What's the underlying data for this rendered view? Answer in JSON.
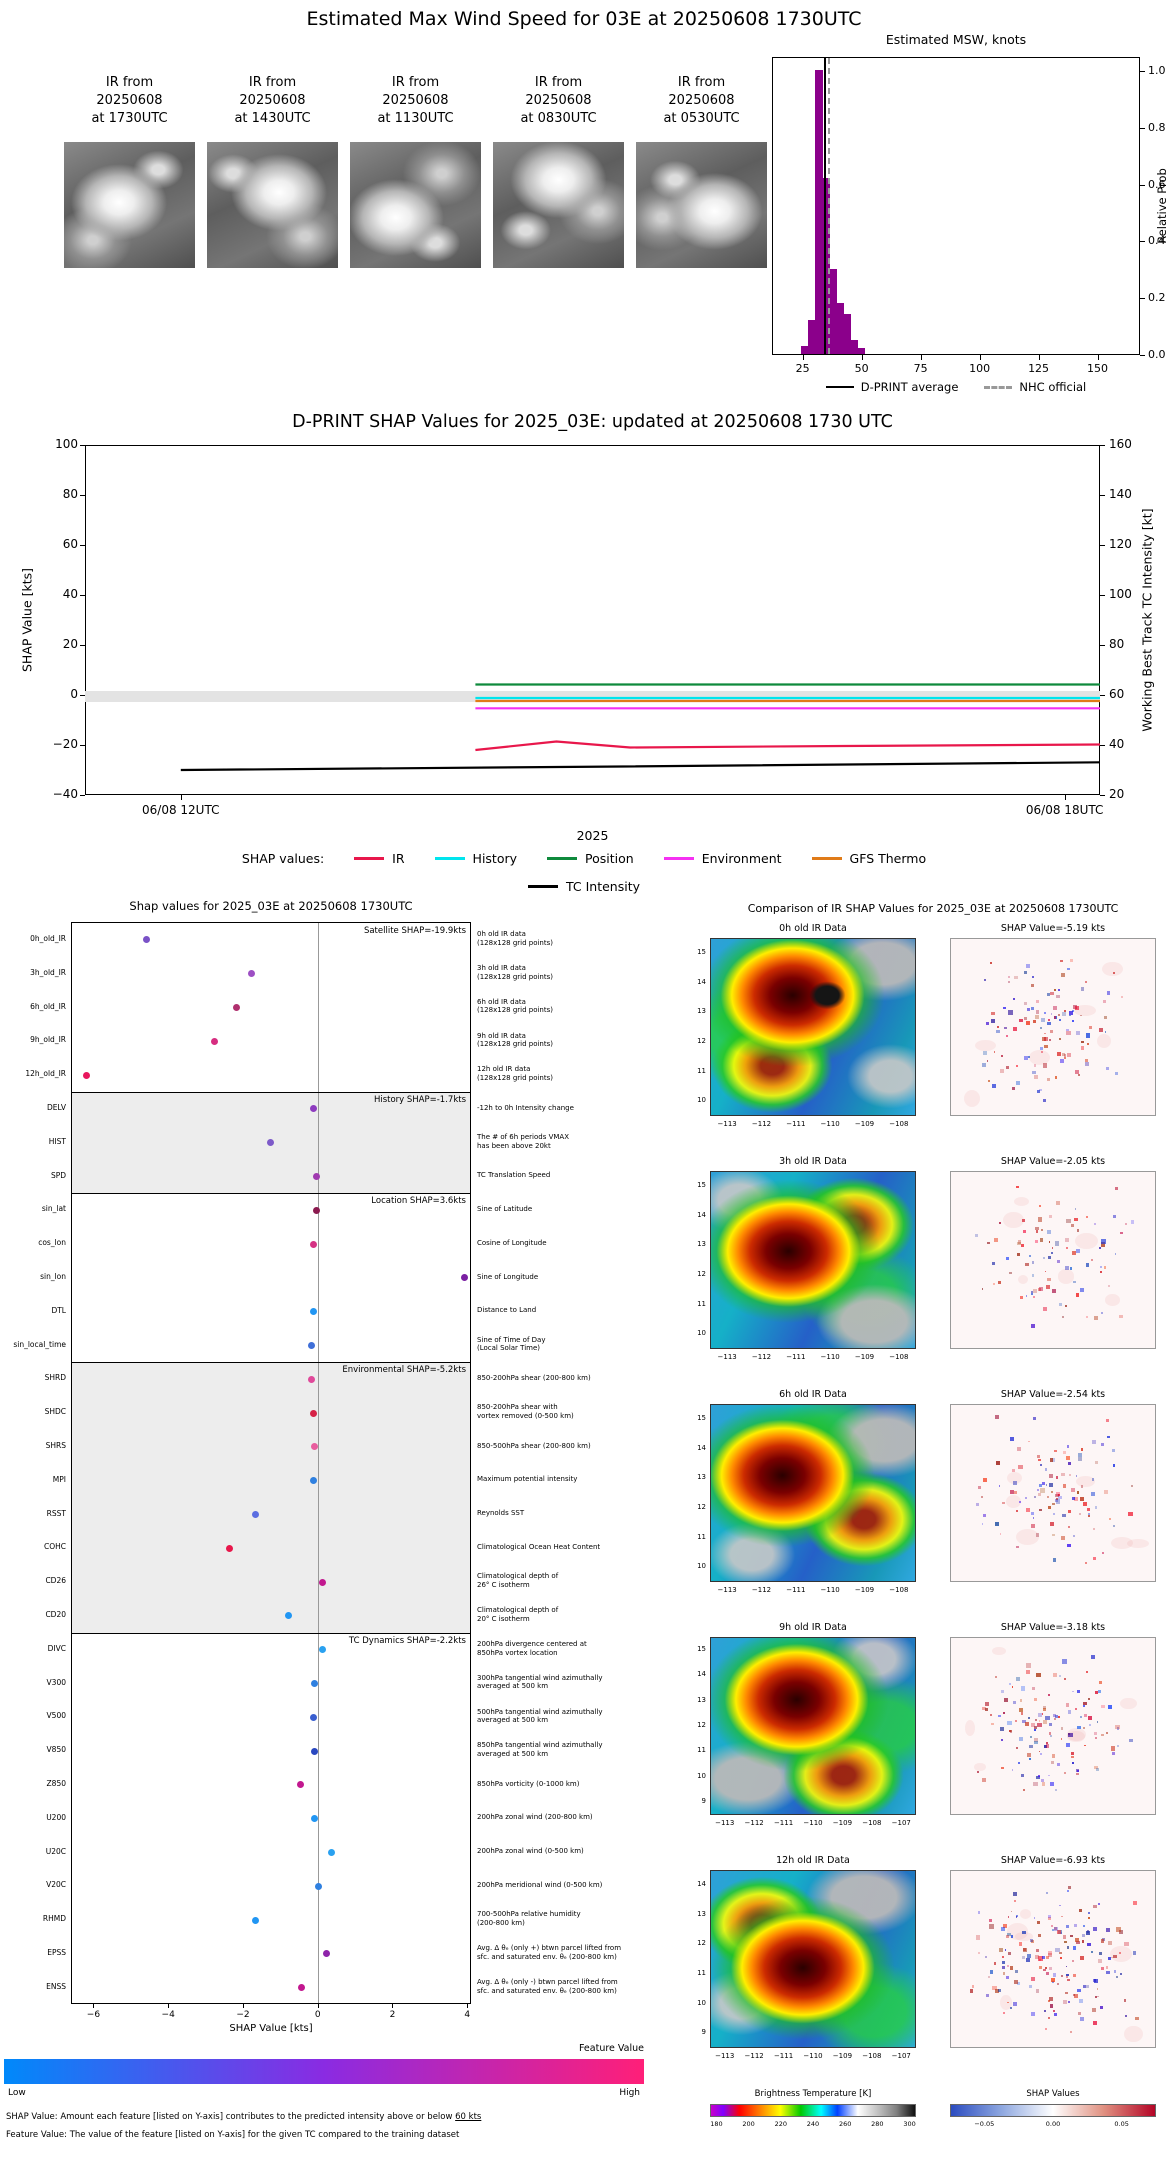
{
  "top": {
    "title": "Estimated Max Wind Speed for 03E at 20250608 1730UTC",
    "thumbnails": [
      {
        "label": "IR from\n20250608\nat 1730UTC"
      },
      {
        "label": "IR from\n20250608\nat 1430UTC"
      },
      {
        "label": "IR from\n20250608\nat 1130UTC"
      },
      {
        "label": "IR from\n20250608\nat 0830UTC"
      },
      {
        "label": "IR from\n20250608\nat 0530UTC"
      }
    ]
  },
  "chart_data": [
    {
      "id": "msw_histogram",
      "type": "bar",
      "title": "Estimated MSW, knots",
      "ylabel": "Relative Prob",
      "xlim": [
        12,
        168
      ],
      "ylim": [
        0,
        1.05
      ],
      "xticks": [
        25,
        50,
        75,
        100,
        125,
        150
      ],
      "yticks": [
        "0.0",
        "0.2",
        "0.4",
        "0.6",
        "0.8",
        "1.0"
      ],
      "bar_color": "#8B008B",
      "bin_start": 24,
      "bin_width": 3,
      "values": [
        0.03,
        0.12,
        1.0,
        0.62,
        0.3,
        0.18,
        0.14,
        0.05,
        0.02
      ],
      "dprint_average": 33.5,
      "nhc_official": 35.5,
      "legend": [
        {
          "label": "D-PRINT average",
          "color": "#000000",
          "style": "solid"
        },
        {
          "label": "NHC official",
          "color": "#999999",
          "style": "dashed"
        }
      ]
    },
    {
      "id": "shap_timeseries",
      "type": "line",
      "title": "D-PRINT SHAP Values for 2025_03E: updated at 20250608 1730 UTC",
      "ylabel_left": "SHAP Value [kts]",
      "ylabel_right": "Working Best Track TC Intensity [kt]",
      "xlabel": "2025",
      "ylim": [
        -40,
        100
      ],
      "ylim_right": [
        20,
        160
      ],
      "xlim": [
        11.35,
        18.24
      ],
      "yticks_left": [
        100,
        80,
        60,
        40,
        20,
        0,
        -20,
        -40
      ],
      "yticks_right": [
        160,
        140,
        120,
        100,
        80,
        60,
        40,
        20
      ],
      "xticks": [
        {
          "x": 12,
          "label": "06/08 12UTC"
        },
        {
          "x": 18,
          "label": "06/08 18UTC"
        }
      ],
      "zero_band": {
        "y0": -2.8,
        "y1": 1.6,
        "color": "#e3e3e3"
      },
      "legend_title": "SHAP values:",
      "series": [
        {
          "name": "IR",
          "color": "#e8174b",
          "points": [
            [
              14.0,
              -22.0
            ],
            [
              14.55,
              -18.6
            ],
            [
              15.05,
              -21.0
            ],
            [
              16.5,
              -20.4
            ],
            [
              18.24,
              -19.8
            ]
          ]
        },
        {
          "name": "History",
          "color": "#00e5ee",
          "points": [
            [
              14.0,
              -1.2
            ],
            [
              18.24,
              -1.2
            ]
          ]
        },
        {
          "name": "Position",
          "color": "#0f8a3c",
          "points": [
            [
              14.0,
              4.2
            ],
            [
              18.24,
              4.2
            ]
          ]
        },
        {
          "name": "Environment",
          "color": "#f531f2",
          "points": [
            [
              14.0,
              -5.3
            ],
            [
              18.24,
              -5.3
            ]
          ]
        },
        {
          "name": "GFS Thermo",
          "color": "#e07b18",
          "points": [
            [
              14.0,
              -2.4
            ],
            [
              18.24,
              -2.4
            ]
          ]
        },
        {
          "name": "TC Intensity",
          "color": "#000000",
          "points": [
            [
              12.0,
              -30.0
            ],
            [
              15.0,
              -28.6
            ],
            [
              18.24,
              -26.9
            ]
          ]
        }
      ]
    },
    {
      "id": "feature_shap",
      "type": "scatter",
      "title": "Shap values for 2025_03E at 20250608 1730UTC",
      "xlabel": "SHAP Value [kts]",
      "xlim": [
        -6.6,
        4.1
      ],
      "xticks": [
        -6,
        -4,
        -2,
        0,
        2,
        4
      ],
      "sections": [
        {
          "label": "Satellite SHAP=-19.9kts",
          "start": 0,
          "count": 5,
          "shaded": false
        },
        {
          "label": "History SHAP=-1.7kts",
          "start": 5,
          "count": 3,
          "shaded": true
        },
        {
          "label": "Location SHAP=3.6kts",
          "start": 8,
          "count": 5,
          "shaded": false
        },
        {
          "label": "Environmental SHAP=-5.2kts",
          "start": 13,
          "count": 8,
          "shaded": true
        },
        {
          "label": "TC Dynamics SHAP=-2.2kts",
          "start": 21,
          "count": 11,
          "shaded": false
        }
      ],
      "features": [
        {
          "name": "0h_old_IR",
          "value": -4.6,
          "color": "#7a52c7",
          "desc": "0h old IR data\n(128x128 grid points)"
        },
        {
          "name": "3h_old_IR",
          "value": -1.8,
          "color": "#9d4fc4",
          "desc": "3h old IR data\n(128x128 grid points)"
        },
        {
          "name": "6h_old_IR",
          "value": -2.2,
          "color": "#b0306e",
          "desc": "6h old IR data\n(128x128 grid points)"
        },
        {
          "name": "9h_old_IR",
          "value": -2.8,
          "color": "#d62d80",
          "desc": "9h old IR data\n(128x128 grid points)"
        },
        {
          "name": "12h_old_IR",
          "value": -6.2,
          "color": "#e8175d",
          "desc": "12h old IR data\n(128x128 grid points)"
        },
        {
          "name": "DELV",
          "value": -0.15,
          "color": "#8d3bbf",
          "desc": "-12h to 0h Intensity change"
        },
        {
          "name": "HIST",
          "value": -1.3,
          "color": "#7d5ac9",
          "desc": "The # of 6h periods VMAX\nhas been above 20kt"
        },
        {
          "name": "SPD",
          "value": -0.05,
          "color": "#a03ab0",
          "desc": "TC Translation Speed"
        },
        {
          "name": "sin_lat",
          "value": -0.05,
          "color": "#8b1a4f",
          "desc": "Sine of Latitude"
        },
        {
          "name": "cos_lon",
          "value": -0.15,
          "color": "#d63384",
          "desc": "Cosine of Longitude"
        },
        {
          "name": "sin_lon",
          "value": 3.9,
          "color": "#7a1fa2",
          "desc": "Sine of Longitude"
        },
        {
          "name": "DTL",
          "value": -0.15,
          "color": "#2196f3",
          "desc": "Distance to Land"
        },
        {
          "name": "sin_local_time",
          "value": -0.2,
          "color": "#3f6fd8",
          "desc": "Sine of Time of Day\n(Local Solar Time)"
        },
        {
          "name": "SHRD",
          "value": -0.2,
          "color": "#e0499a",
          "desc": "850-200hPa shear (200-800 km)"
        },
        {
          "name": "SHDC",
          "value": -0.15,
          "color": "#d62246",
          "desc": "850-200hPa shear with\nvortex removed (0-500 km)"
        },
        {
          "name": "SHRS",
          "value": -0.1,
          "color": "#e85d9e",
          "desc": "850-500hPa shear (200-800 km)"
        },
        {
          "name": "MPI",
          "value": -0.15,
          "color": "#2f80e0",
          "desc": "Maximum potential intensity"
        },
        {
          "name": "RSST",
          "value": -1.7,
          "color": "#5b6ee1",
          "desc": "Reynolds SST"
        },
        {
          "name": "COHC",
          "value": -2.4,
          "color": "#e8174b",
          "desc": "Climatological Ocean Heat Content"
        },
        {
          "name": "CD26",
          "value": 0.1,
          "color": "#c2188f",
          "desc": "Climatological depth of\n26° C isotherm"
        },
        {
          "name": "CD20",
          "value": -0.8,
          "color": "#2196f3",
          "desc": "Climatological depth of\n20° C isotherm"
        },
        {
          "name": "DIVC",
          "value": 0.1,
          "color": "#2aa1f0",
          "desc": "200hPa divergence centered at\n850hPa vortex location"
        },
        {
          "name": "V300",
          "value": -0.1,
          "color": "#2f80e0",
          "desc": "300hPa tangential wind azimuthally\naveraged at 500 km"
        },
        {
          "name": "V500",
          "value": -0.15,
          "color": "#3a5fd0",
          "desc": "500hPa tangential wind azimuthally\naveraged at 500 km"
        },
        {
          "name": "V850",
          "value": -0.1,
          "color": "#2a48c0",
          "desc": "850hPa tangential wind azimuthally\naveraged at 500 km"
        },
        {
          "name": "Z850",
          "value": -0.5,
          "color": "#c2188f",
          "desc": "850hPa vorticity (0-1000 km)"
        },
        {
          "name": "U200",
          "value": -0.1,
          "color": "#2196f3",
          "desc": "200hPa zonal wind (200-800 km)"
        },
        {
          "name": "U20C",
          "value": 0.35,
          "color": "#2aa1f0",
          "desc": "200hPa zonal wind (0-500 km)"
        },
        {
          "name": "V20C",
          "value": 0.0,
          "color": "#2f80e0",
          "desc": "200hPa meridional wind (0-500 km)"
        },
        {
          "name": "RHMD",
          "value": -1.7,
          "color": "#2196f3",
          "desc": "700-500hPa relative humidity\n(200-800 km)"
        },
        {
          "name": "EPSS",
          "value": 0.2,
          "color": "#8e24aa",
          "desc": "Avg. Δ θₑ (only +) btwn parcel lifted from\nsfc. and saturated env. θₑ (200-800 km)"
        },
        {
          "name": "ENSS",
          "value": -0.45,
          "color": "#c2188f",
          "desc": "Avg. Δ θₑ (only -) btwn parcel lifted from\nsfc. and saturated env. θₑ (200-800 km)"
        }
      ],
      "colorbar": {
        "title": "Feature Value",
        "low_label": "Low",
        "high_label": "High",
        "gradient": [
          "#0089fa",
          "#8a2be2",
          "#ff1f78"
        ]
      },
      "footnote_shap": "SHAP Value: Amount each feature [listed on Y-axis] contributes to the predicted intensity above or below",
      "footnote_shap_underline": "60 kts",
      "footnote_feature": "Feature Value: The value of the feature [listed on Y-axis] for the given TC compared to the training dataset"
    },
    {
      "id": "ir_comparison",
      "type": "heatmap",
      "title": "Comparison of IR SHAP Values for 2025_03E at 20250608 1730UTC",
      "rows": [
        {
          "ir_title": "0h old IR Data",
          "shap_title": "SHAP Value=-5.19 kts",
          "shap_kts": -5.19,
          "yticks": [
            15,
            14,
            13,
            12,
            11,
            10
          ],
          "xticks": [
            -113,
            -112,
            -111,
            -110,
            -109,
            -108
          ],
          "seed": 11,
          "dots": 120
        },
        {
          "ir_title": "3h old IR Data",
          "shap_title": "SHAP Value=-2.05 kts",
          "shap_kts": -2.05,
          "yticks": [
            15,
            14,
            13,
            12,
            11,
            10
          ],
          "xticks": [
            -113,
            -112,
            -111,
            -110,
            -109,
            -108
          ],
          "seed": 22,
          "dots": 90
        },
        {
          "ir_title": "6h old IR Data",
          "shap_title": "SHAP Value=-2.54 kts",
          "shap_kts": -2.54,
          "yticks": [
            15,
            14,
            13,
            12,
            11,
            10
          ],
          "xticks": [
            -113,
            -112,
            -111,
            -110,
            -109,
            -108
          ],
          "seed": 33,
          "dots": 110
        },
        {
          "ir_title": "9h old IR Data",
          "shap_title": "SHAP Value=-3.18 kts",
          "shap_kts": -3.18,
          "yticks": [
            15,
            14,
            13,
            12,
            11,
            10,
            9
          ],
          "xticks": [
            -113,
            -112,
            -111,
            -110,
            -109,
            -108,
            -107
          ],
          "seed": 44,
          "dots": 135
        },
        {
          "ir_title": "12h old IR Data",
          "shap_title": "SHAP Value=-6.93 kts",
          "shap_kts": -6.93,
          "yticks": [
            14,
            13,
            12,
            11,
            10,
            9
          ],
          "xticks": [
            -113,
            -112,
            -111,
            -110,
            -109,
            -108,
            -107
          ],
          "seed": 55,
          "dots": 175
        }
      ],
      "bt_colorbar": {
        "title": "Brightness Temperature [K]",
        "ticks": [
          180,
          200,
          220,
          240,
          260,
          280,
          300
        ],
        "lim": [
          176,
          304
        ]
      },
      "shap_colorbar": {
        "title": "SHAP Values",
        "ticks": [
          "-0.05",
          "0.00",
          "0.05"
        ],
        "tick_values": [
          -0.05,
          0.0,
          0.05
        ],
        "lim": [
          -0.075,
          0.075
        ]
      }
    }
  ]
}
